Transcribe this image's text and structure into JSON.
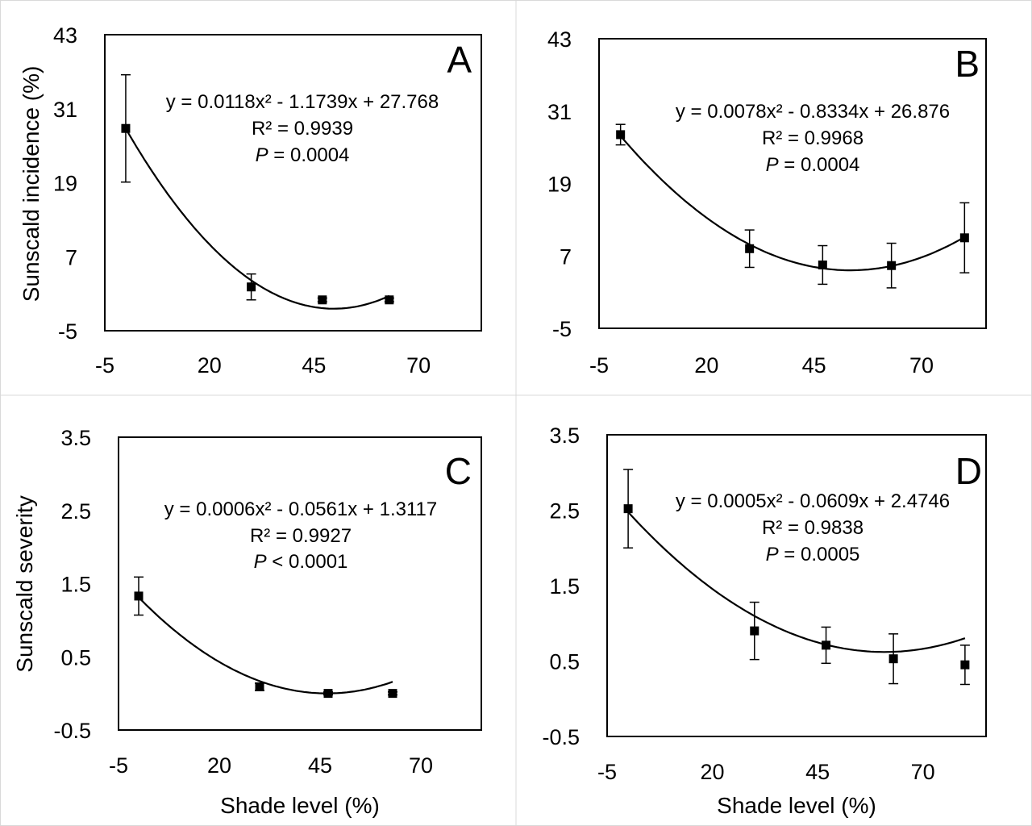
{
  "chart_data": [
    {
      "panel": "A",
      "type": "scatter",
      "ylabel": "Sunscald incidence (%)",
      "xlabel": "",
      "xlim": [
        -5,
        85
      ],
      "ylim": [
        -5,
        43
      ],
      "xticks": [
        "-5",
        "20",
        "45",
        "70"
      ],
      "yticks": [
        "43",
        "31",
        "19",
        "7",
        "-5"
      ],
      "x": [
        0,
        30,
        47,
        63
      ],
      "y": [
        27.8,
        2.1,
        0.0,
        0.0
      ],
      "error": [
        8.7,
        2.1,
        0.3,
        0.3
      ],
      "fit": {
        "type": "quadratic",
        "a": 0.0118,
        "b": -1.1739,
        "c": 27.768
      },
      "equation": "y = 0.0118x² - 1.1739x + 27.768",
      "r2": "R² = 0.9939",
      "p_label": "P",
      "p_value": " = 0.0004",
      "grid": false
    },
    {
      "panel": "B",
      "type": "scatter",
      "ylabel": "",
      "xlabel": "",
      "xlim": [
        -5,
        85
      ],
      "ylim": [
        -5,
        43
      ],
      "xticks": [
        "-5",
        "20",
        "45",
        "70"
      ],
      "yticks": [
        "43",
        "31",
        "19",
        "7",
        "-5"
      ],
      "x": [
        0,
        30,
        47,
        63,
        80
      ],
      "y": [
        27.1,
        8.2,
        5.5,
        5.4,
        10.0
      ],
      "error": [
        1.7,
        3.1,
        3.2,
        3.7,
        5.8
      ],
      "fit": {
        "type": "quadratic",
        "a": 0.0078,
        "b": -0.8334,
        "c": 26.876
      },
      "equation": "y = 0.0078x² - 0.8334x + 26.876",
      "r2": "R² = 0.9968",
      "p_label": "P",
      "p_value": " = 0.0004",
      "grid": false
    },
    {
      "panel": "C",
      "type": "scatter",
      "ylabel": "Sunscald severity",
      "xlabel": "Shade level (%)",
      "xlim": [
        -5,
        85
      ],
      "ylim": [
        -0.5,
        3.5
      ],
      "xticks": [
        "-5",
        "20",
        "45",
        "70"
      ],
      "yticks": [
        "3.5",
        "2.5",
        "1.5",
        "0.5",
        "-0.5"
      ],
      "x": [
        0,
        30,
        47,
        63
      ],
      "y": [
        1.33,
        0.09,
        0.0,
        0.0
      ],
      "error": [
        0.26,
        0.05,
        0.02,
        0.02
      ],
      "fit": {
        "type": "quadratic",
        "a": 0.0006,
        "b": -0.0561,
        "c": 1.3117
      },
      "equation": "y = 0.0006x² - 0.0561x + 1.3117",
      "r2": "R² = 0.9927",
      "p_label": "P",
      "p_value": " < 0.0001",
      "grid": false
    },
    {
      "panel": "D",
      "type": "scatter",
      "ylabel": "",
      "xlabel": "Shade level (%)",
      "xlim": [
        -5,
        85
      ],
      "ylim": [
        -0.5,
        3.5
      ],
      "xticks": [
        "-5",
        "20",
        "45",
        "70"
      ],
      "yticks": [
        "3.5",
        "2.5",
        "1.5",
        "0.5",
        "-0.5"
      ],
      "x": [
        0,
        30,
        47,
        63,
        80
      ],
      "y": [
        2.52,
        0.9,
        0.71,
        0.53,
        0.45
      ],
      "error": [
        0.52,
        0.38,
        0.24,
        0.33,
        0.26
      ],
      "fit": {
        "type": "quadratic",
        "a": 0.0005,
        "b": -0.0609,
        "c": 2.4746
      },
      "equation": "y = 0.0005x² - 0.0609x + 2.4746",
      "r2": "R² = 0.9838",
      "p_label": "P",
      "p_value": " = 0.0005",
      "grid": false
    }
  ]
}
